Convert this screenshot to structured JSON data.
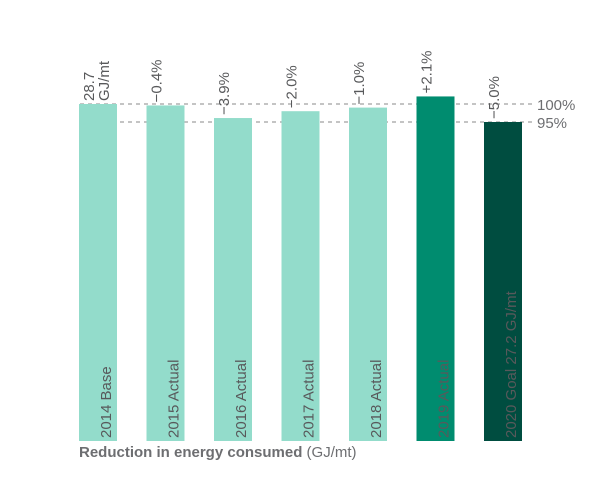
{
  "chart_data": {
    "type": "bar",
    "categories": [
      "2014 Base",
      "2015 Actual",
      "2016 Actual",
      "2017 Actual",
      "2018 Actual",
      "2019 Actual",
      "2020 Goal 27.2 GJ/mt"
    ],
    "values": [
      100,
      99.6,
      96.1,
      98.0,
      99.0,
      102.1,
      95.0
    ],
    "bar_labels": [
      "28.7\nGJ/mt",
      "−0.4%",
      "−3.9%",
      "−2.0%",
      "−1.0%",
      "+2.1%",
      "−5.0%"
    ],
    "bar_colors": [
      "#93dccb",
      "#93dccb",
      "#93dccb",
      "#93dccb",
      "#93dccb",
      "#008c6f",
      "#004d40"
    ],
    "reference_lines": [
      {
        "value": 100,
        "label": "100%"
      },
      {
        "value": 95,
        "label": "95%"
      }
    ],
    "ylim": [
      0,
      100
    ],
    "title": "",
    "xlabel": "",
    "ylabel": ""
  },
  "caption": {
    "bold": "Reduction in energy consumed",
    "unit": "(GJ/mt)"
  }
}
